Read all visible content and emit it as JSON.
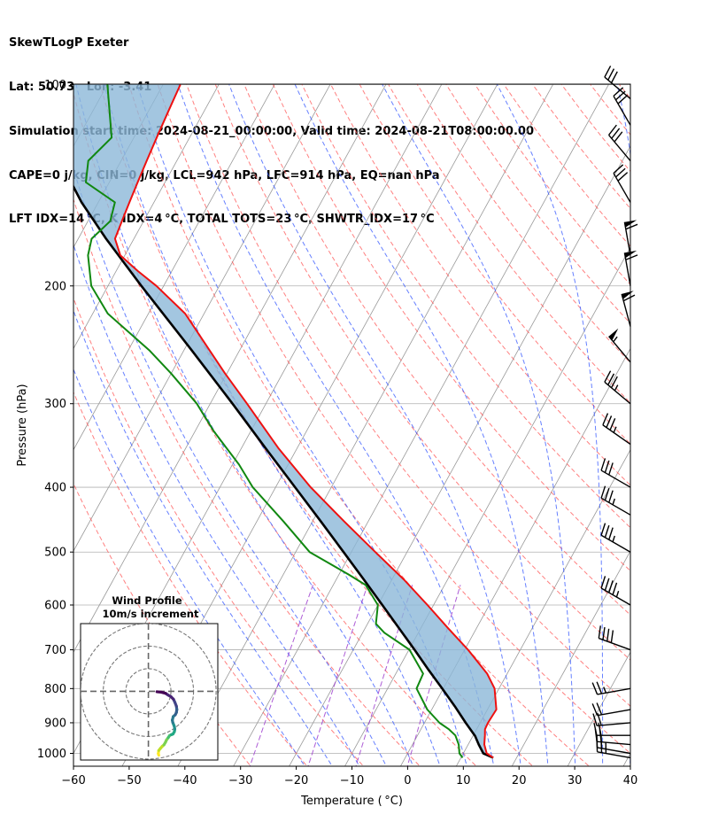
{
  "title_lines": [
    "SkewTLogP Exeter",
    "Lat: 50.73   Lon: -3.41",
    "Simulation start time: 2024-08-21_00:00:00, Valid time: 2024-08-21T08:00:00.00",
    "CAPE=0 j/kg, CIN=0 j/kg, LCL=942 hPa, LFC=914 hPa, EQ=nan hPa",
    "LFT IDX=14 °C, K IDX=4 °C, TOTAL TOTS=23 °C, SHWTR_IDX=17 °C"
  ],
  "chart_data": {
    "type": "line",
    "xlabel": "Temperature ( °C)",
    "ylabel": "Pressure (hPa)",
    "xlim": [
      -60,
      40
    ],
    "ylim": [
      1050,
      100
    ],
    "y_scale": "log",
    "skew": true,
    "x_ticks": [
      -60,
      -50,
      -40,
      -30,
      -20,
      -10,
      0,
      10,
      20,
      30,
      40
    ],
    "x_tick_labels": [
      "−60",
      "−50",
      "−40",
      "−30",
      "−20",
      "−10",
      "0",
      "10",
      "20",
      "30",
      "40"
    ],
    "y_ticks": [
      1000,
      900,
      800,
      700,
      600,
      500,
      400,
      300,
      200,
      100
    ],
    "y_tick_labels": [
      "1000",
      "900",
      "800",
      "700",
      "600",
      "500",
      "400",
      "300",
      "200",
      "100"
    ],
    "grid": true,
    "colors": {
      "temperature": "#ee1111",
      "dewpoint": "#118811",
      "parcel": "#000000",
      "cin_cape_fill": "#8cb8d8",
      "dry_adiabats": "#ff5555",
      "moist_adiabats": "#3355ff",
      "mixing_ratio": "#9933cc",
      "isotherms": "#999999"
    },
    "series": [
      {
        "key": "temperature",
        "pressure": [
          1015,
          1000,
          970,
          940,
          920,
          900,
          860,
          800,
          760,
          700,
          650,
          600,
          550,
          500,
          450,
          400,
          350,
          300,
          270,
          250,
          220,
          200,
          190,
          180,
          170,
          160,
          150,
          140,
          130,
          120,
          110,
          100
        ],
        "x": [
          15.8,
          14.2,
          12.9,
          12.1,
          11.5,
          11.4,
          11.6,
          9.2,
          6.4,
          0.6,
          -5.1,
          -11.1,
          -17.8,
          -25.7,
          -34.3,
          -43.7,
          -53.3,
          -63.4,
          -70.4,
          -75.3,
          -83.4,
          -91.3,
          -96.1,
          -100.8,
          -103.4,
          -103.9,
          -104.4,
          -104.9,
          -105.4,
          -105.9,
          -106.4,
          -106.9
        ]
      },
      {
        "key": "dewpoint",
        "pressure": [
          1015,
          1000,
          970,
          940,
          920,
          900,
          860,
          800,
          760,
          700,
          660,
          640,
          600,
          560,
          540,
          500,
          450,
          400,
          370,
          330,
          300,
          270,
          250,
          220,
          200,
          180,
          170,
          160,
          150,
          140,
          130,
          120,
          100
        ],
        "x": [
          10.3,
          9.3,
          8.3,
          6.8,
          5.0,
          2.7,
          -0.8,
          -4.8,
          -5.1,
          -9.9,
          -16.1,
          -18.5,
          -20.0,
          -24.2,
          -28.3,
          -37.5,
          -45.2,
          -54.1,
          -58.8,
          -66.6,
          -72.4,
          -80.1,
          -86.1,
          -97.3,
          -103.0,
          -106.6,
          -107.6,
          -106.0,
          -107.0,
          -114.2,
          -115.9,
          -114.0,
          -120.0
        ]
      },
      {
        "key": "parcel",
        "pressure": [
          1015,
          1000,
          970,
          942,
          900,
          850,
          800,
          750,
          700,
          650,
          600,
          550,
          500,
          450,
          400,
          350,
          300,
          250,
          200,
          170,
          150,
          130,
          115,
          100
        ],
        "x": [
          15.8,
          13.6,
          11.9,
          10.4,
          7.4,
          3.8,
          -0.2,
          -4.5,
          -9.0,
          -13.9,
          -19.2,
          -25.0,
          -31.4,
          -38.5,
          -46.5,
          -55.6,
          -66.0,
          -78.5,
          -94.0,
          -105.0,
          -113.0,
          -121.0,
          -128.0,
          -135.0
        ]
      }
    ],
    "wind_barbs": {
      "pressure": [
        1015,
        1000,
        970,
        940,
        900,
        860,
        800,
        700,
        600,
        500,
        440,
        400,
        345,
        300,
        260,
        230,
        200,
        180,
        150,
        130,
        115,
        105
      ],
      "speed_kt": [
        25,
        25,
        20,
        20,
        20,
        20,
        25,
        40,
        45,
        35,
        35,
        30,
        35,
        35,
        55,
        60,
        60,
        60,
        30,
        30,
        30,
        30
      ],
      "direction_deg": [
        280,
        280,
        275,
        270,
        265,
        260,
        260,
        290,
        300,
        300,
        300,
        300,
        305,
        310,
        320,
        345,
        350,
        350,
        330,
        320,
        330,
        310
      ]
    },
    "hodograph": {
      "title": "Wind Profile",
      "subtitle": "10m/s increment",
      "ring_step_ms": 10,
      "u_ms": [
        4.6,
        4.4,
        4.6,
        5.4,
        6.1,
        6.9,
        7.6,
        8.0,
        8.8,
        9.4,
        10.2,
        10.9,
        11.5,
        11.7,
        11.5,
        11.2,
        10.8,
        10.6,
        11.0,
        11.9,
        12.4,
        12.6,
        12.4,
        11.7,
        11.1,
        10.0,
        8.6,
        7.6,
        5.7,
        3.8
      ],
      "v_ms": [
        -28.3,
        -27.6,
        -26.2,
        -25.2,
        -24.4,
        -23.7,
        -22.5,
        -21.6,
        -20.5,
        -19.6,
        -19.2,
        -18.9,
        -17.9,
        -16.8,
        -15.6,
        -14.8,
        -13.8,
        -12.8,
        -11.2,
        -10.4,
        -9.4,
        -8.1,
        -6.6,
        -4.8,
        -3.5,
        -2.4,
        -1.6,
        -0.9,
        -0.4,
        -0.2
      ]
    }
  }
}
